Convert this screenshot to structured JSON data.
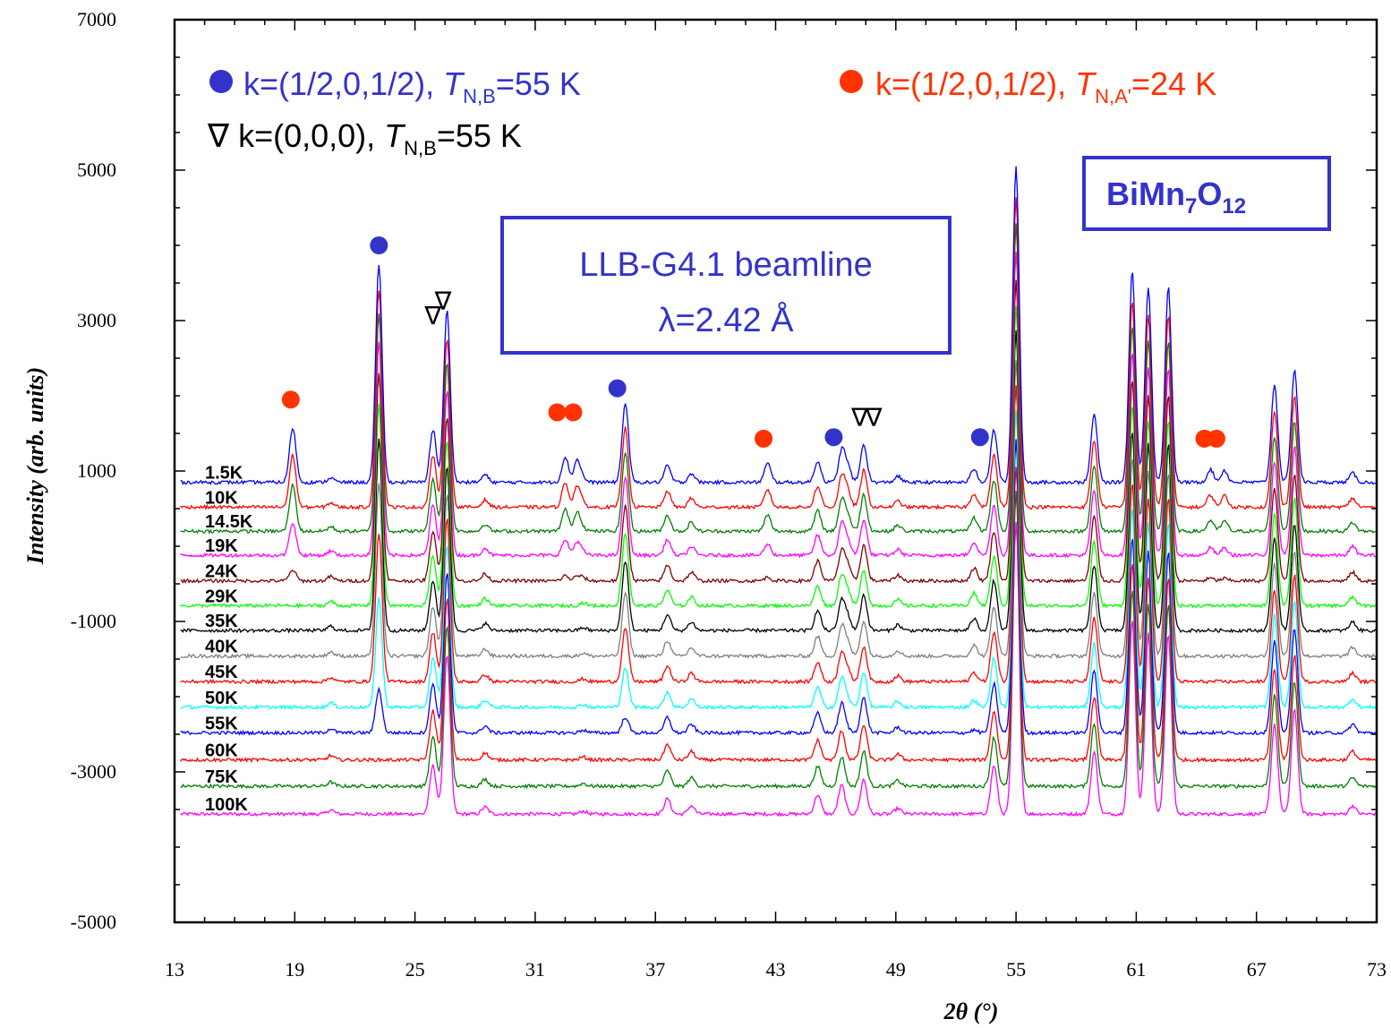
{
  "chart_data": {
    "type": "line",
    "title": "",
    "xlabel": "2θ (°)",
    "ylabel": "Intensity (arb. units)",
    "xlim": [
      13,
      73
    ],
    "ylim": [
      -5000,
      7000
    ],
    "x_ticks": [
      "13",
      "19",
      "25",
      "31",
      "37",
      "43",
      "49",
      "55",
      "61",
      "67",
      "73"
    ],
    "y_ticks": [
      "-5000",
      "-3000",
      "-1000",
      "1000",
      "3000",
      "5000",
      "7000"
    ],
    "grid": false,
    "series": [
      {
        "name": "1.5K",
        "color": "#0000ff",
        "baseline": 850,
        "scale": 1.0,
        "mag_B": 1,
        "mag_A": 1
      },
      {
        "name": "10K",
        "color": "#ff0000",
        "baseline": 520,
        "scale": 0.98,
        "mag_B": 1,
        "mag_A": 0.95
      },
      {
        "name": "14.5K",
        "color": "#007f00",
        "baseline": 200,
        "scale": 0.97,
        "mag_B": 1,
        "mag_A": 0.85
      },
      {
        "name": "19K",
        "color": "#ff00ff",
        "baseline": -120,
        "scale": 0.96,
        "mag_B": 0.98,
        "mag_A": 0.6
      },
      {
        "name": "24K",
        "color": "#7f0000",
        "baseline": -460,
        "scale": 0.95,
        "mag_B": 0.95,
        "mag_A": 0.2
      },
      {
        "name": "29K",
        "color": "#00ff00",
        "baseline": -790,
        "scale": 0.95,
        "mag_B": 0.92,
        "mag_A": 0
      },
      {
        "name": "35K",
        "color": "#000000",
        "baseline": -1120,
        "scale": 0.95,
        "mag_B": 0.88,
        "mag_A": 0
      },
      {
        "name": "40K",
        "color": "#7f7f7f",
        "baseline": -1460,
        "scale": 0.94,
        "mag_B": 0.8,
        "mag_A": 0
      },
      {
        "name": "45K",
        "color": "#ff0000",
        "baseline": -1800,
        "scale": 0.94,
        "mag_B": 0.68,
        "mag_A": 0
      },
      {
        "name": "50K",
        "color": "#00ffff",
        "baseline": -2140,
        "scale": 0.94,
        "mag_B": 0.5,
        "mag_A": 0
      },
      {
        "name": "55K",
        "color": "#0000ff",
        "baseline": -2480,
        "scale": 0.93,
        "mag_B": 0.2,
        "mag_A": 0
      },
      {
        "name": "60K",
        "color": "#ff0000",
        "baseline": -2840,
        "scale": 0.93,
        "mag_B": 0,
        "mag_A": 0
      },
      {
        "name": "75K",
        "color": "#007f00",
        "baseline": -3190,
        "scale": 0.93,
        "mag_B": 0,
        "mag_A": 0
      },
      {
        "name": "100K",
        "color": "#ff00ff",
        "baseline": -3560,
        "scale": 0.92,
        "mag_B": 0,
        "mag_A": 0
      }
    ],
    "peaks": {
      "nuclear": [
        [
          20.8,
          60
        ],
        [
          25.9,
          700
        ],
        [
          26.6,
          2300
        ],
        [
          28.5,
          100
        ],
        [
          33.4,
          40
        ],
        [
          37.6,
          220
        ],
        [
          38.8,
          120
        ],
        [
          45.1,
          280
        ],
        [
          46.3,
          420
        ],
        [
          47.4,
          500
        ],
        [
          49.1,
          80
        ],
        [
          53.9,
          700
        ],
        [
          55.0,
          4200
        ],
        [
          58.9,
          900
        ],
        [
          60.8,
          2800
        ],
        [
          61.6,
          2600
        ],
        [
          62.6,
          2600
        ],
        [
          67.9,
          1300
        ],
        [
          68.9,
          1500
        ],
        [
          71.8,
          120
        ]
      ],
      "magnetic_B": [
        [
          23.2,
          2900
        ],
        [
          35.5,
          1050
        ],
        [
          52.9,
          180
        ],
        [
          46.6,
          200
        ]
      ],
      "magnetic_A": [
        [
          18.9,
          730
        ],
        [
          32.5,
          340
        ],
        [
          33.1,
          300
        ],
        [
          42.6,
          250
        ],
        [
          64.7,
          170
        ],
        [
          65.4,
          160
        ]
      ]
    },
    "markers": {
      "blue_dots": [
        [
          23.2,
          4000
        ],
        [
          35.1,
          2100
        ],
        [
          45.9,
          1450
        ],
        [
          53.2,
          1450
        ]
      ],
      "red_dots": [
        [
          18.8,
          1950
        ],
        [
          32.1,
          1780
        ],
        [
          32.9,
          1780
        ],
        [
          42.4,
          1430
        ],
        [
          64.4,
          1430
        ],
        [
          65.0,
          1430
        ]
      ],
      "triangles": [
        [
          25.9,
          2950
        ],
        [
          26.4,
          3150
        ],
        [
          47.2,
          1600
        ],
        [
          47.9,
          1600
        ]
      ]
    },
    "legend": {
      "blue": {
        "prefix": "k=(1/2,0,1/2), ",
        "T": "T",
        "sub": "N,B",
        "suffix": "=55 K",
        "color": "#3333cc"
      },
      "red": {
        "prefix": "k=(1/2,0,1/2), ",
        "T": "T",
        "sub": "N,A'",
        "suffix": "=24 K",
        "color": "#ff3300"
      },
      "triangle": {
        "symbol": "∇",
        "prefix": " k=(0,0,0), ",
        "T": "T",
        "sub": "N,B",
        "suffix": "=55 K",
        "color": "#000000"
      }
    },
    "annotations": {
      "beamline_line1": "LLB-G4.1 beamline",
      "beamline_line2": "λ=2.42 Å",
      "compound_main": "BiMn",
      "compound_sub1": "7",
      "compound_o": "O",
      "compound_sub2": "12"
    },
    "legend_position": "top-left"
  }
}
